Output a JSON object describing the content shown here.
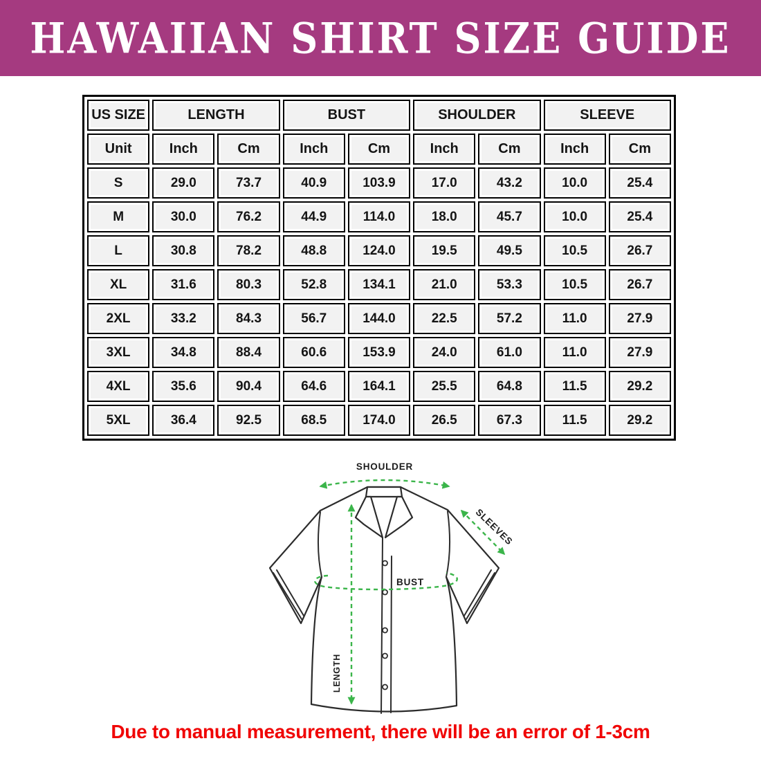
{
  "banner": {
    "title": "HAWAIIAN SHIRT SIZE GUIDE"
  },
  "size_table": {
    "group_headers": [
      {
        "label": "US SIZE",
        "span": 1
      },
      {
        "label": "LENGTH",
        "span": 2
      },
      {
        "label": "BUST",
        "span": 2
      },
      {
        "label": "SHOULDER",
        "span": 2
      },
      {
        "label": "SLEEVE",
        "span": 2
      }
    ],
    "unit_row": [
      "Unit",
      "Inch",
      "Cm",
      "Inch",
      "Cm",
      "Inch",
      "Cm",
      "Inch",
      "Cm"
    ],
    "rows": [
      {
        "size": "S",
        "values": [
          "29.0",
          "73.7",
          "40.9",
          "103.9",
          "17.0",
          "43.2",
          "10.0",
          "25.4"
        ]
      },
      {
        "size": "M",
        "values": [
          "30.0",
          "76.2",
          "44.9",
          "114.0",
          "18.0",
          "45.7",
          "10.0",
          "25.4"
        ]
      },
      {
        "size": "L",
        "values": [
          "30.8",
          "78.2",
          "48.8",
          "124.0",
          "19.5",
          "49.5",
          "10.5",
          "26.7"
        ]
      },
      {
        "size": "XL",
        "values": [
          "31.6",
          "80.3",
          "52.8",
          "134.1",
          "21.0",
          "53.3",
          "10.5",
          "26.7"
        ]
      },
      {
        "size": "2XL",
        "values": [
          "33.2",
          "84.3",
          "56.7",
          "144.0",
          "22.5",
          "57.2",
          "11.0",
          "27.9"
        ]
      },
      {
        "size": "3XL",
        "values": [
          "34.8",
          "88.4",
          "60.6",
          "153.9",
          "24.0",
          "61.0",
          "11.0",
          "27.9"
        ]
      },
      {
        "size": "4XL",
        "values": [
          "35.6",
          "90.4",
          "64.6",
          "164.1",
          "25.5",
          "64.8",
          "11.5",
          "29.2"
        ]
      },
      {
        "size": "5XL",
        "values": [
          "36.4",
          "92.5",
          "68.5",
          "174.0",
          "26.5",
          "67.3",
          "11.5",
          "29.2"
        ]
      }
    ]
  },
  "diagram": {
    "labels": {
      "shoulder": "SHOULDER",
      "sleeves": "SLEEVES",
      "bust": "BUST",
      "length": "LENGTH"
    }
  },
  "footnote": {
    "text": "Due to manual measurement, there will be an error of 1-3cm"
  },
  "colors": {
    "banner_bg": "#a53a80",
    "banner_text": "#ffffff",
    "arrow_green": "#3bb54a",
    "note_red": "#f00505",
    "cell_bg": "#f2f2f2",
    "table_border": "#000000"
  }
}
